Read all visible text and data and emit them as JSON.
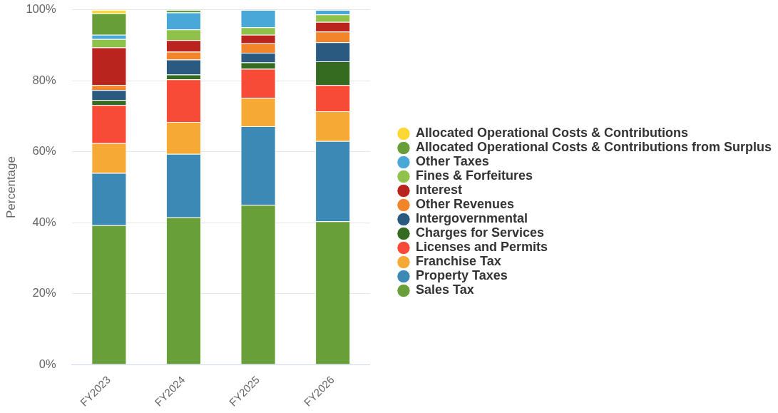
{
  "chart_data": {
    "type": "bar",
    "stacked": true,
    "ylabel": "Percentage",
    "categories": [
      "FY2023",
      "FY2024",
      "FY2025",
      "FY2026"
    ],
    "series": [
      {
        "name": "Sales Tax",
        "color": "#689f38",
        "values": [
          39.3,
          41.5,
          45.0,
          40.4
        ]
      },
      {
        "name": "Property Taxes",
        "color": "#3d89b5",
        "values": [
          14.7,
          17.9,
          22.2,
          22.6
        ]
      },
      {
        "name": "Franchise Tax",
        "color": "#f7a935",
        "values": [
          8.4,
          9.0,
          8.0,
          8.4
        ]
      },
      {
        "name": "Licenses and Permits",
        "color": "#f84b37",
        "values": [
          10.8,
          12.0,
          8.2,
          7.4
        ]
      },
      {
        "name": "Charges for Services",
        "color": "#356a21",
        "values": [
          1.4,
          1.4,
          1.8,
          6.7
        ]
      },
      {
        "name": "Intergovernmental",
        "color": "#2b5a80",
        "values": [
          2.8,
          4.2,
          2.7,
          5.4
        ]
      },
      {
        "name": "Other Revenues",
        "color": "#f2852a",
        "values": [
          1.4,
          2.2,
          2.7,
          3.0
        ]
      },
      {
        "name": "Interest",
        "color": "#b9241f",
        "values": [
          10.6,
          3.3,
          2.4,
          2.7
        ]
      },
      {
        "name": "Fines & Forfeitures",
        "color": "#8fc24a",
        "values": [
          2.4,
          3.0,
          2.1,
          2.1
        ]
      },
      {
        "name": "Other Taxes",
        "color": "#4aa8d8",
        "values": [
          1.2,
          4.8,
          4.9,
          1.3
        ]
      },
      {
        "name": "Allocated Operational Costs & Contributions from Surplus",
        "color": "#679e38",
        "values": [
          6.0,
          0.7,
          null,
          null
        ]
      },
      {
        "name": "Allocated Operational Costs & Contributions",
        "color": "#fdd835",
        "values": [
          1.0,
          null,
          null,
          null
        ]
      }
    ],
    "ylim": [
      0,
      100
    ],
    "yticks": [
      {
        "value": 0,
        "label": "0%"
      },
      {
        "value": 20,
        "label": "20%"
      },
      {
        "value": 40,
        "label": "40%"
      },
      {
        "value": 60,
        "label": "60%"
      },
      {
        "value": 80,
        "label": "80%"
      },
      {
        "value": 100,
        "label": "100%"
      }
    ],
    "grid": "y",
    "legend": "right"
  }
}
